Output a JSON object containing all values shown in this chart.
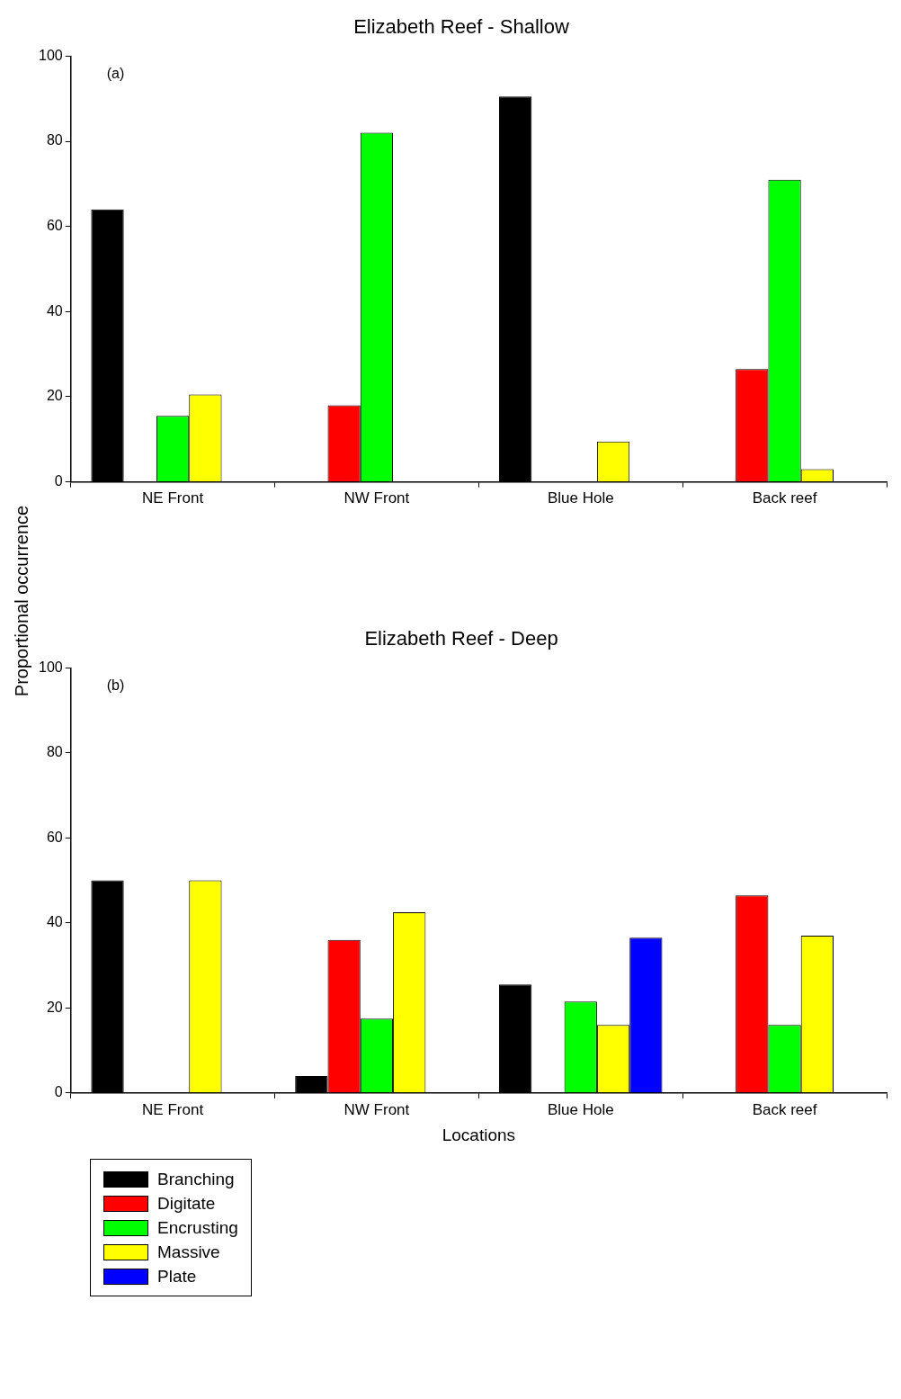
{
  "chart_data": [
    {
      "type": "bar",
      "title": "Elizabeth Reef - Shallow",
      "ylabel": "Proportional occurrence",
      "annotations": [
        "(a)"
      ],
      "categories": [
        "NE Front",
        "NW Front",
        "Blue Hole",
        "Back reef"
      ],
      "series": [
        {
          "color": "#000000",
          "values": [
            64,
            0,
            90.5,
            0
          ]
        },
        {
          "color": "#ff0000",
          "values": [
            0,
            18,
            0,
            26.5
          ]
        },
        {
          "color": "#00ff00",
          "values": [
            15.5,
            82,
            0,
            71
          ]
        },
        {
          "color": "#ffff00",
          "values": [
            20.5,
            0,
            9.5,
            3
          ]
        },
        {
          "color": "#0000ff",
          "values": [
            0,
            0,
            0,
            0
          ]
        }
      ],
      "ylim": [
        0,
        100
      ],
      "yticks": [
        0,
        20,
        40,
        60,
        80,
        100
      ]
    },
    {
      "type": "bar",
      "title": "Elizabeth Reef - Deep",
      "xlabel": "Locations",
      "annotations": [
        "(b)"
      ],
      "categories": [
        "NE Front",
        "NW Front",
        "Blue Hole",
        "Back reef"
      ],
      "series": [
        {
          "name": "Branching",
          "color": "#000000",
          "values": [
            50,
            4,
            25.5,
            0
          ]
        },
        {
          "name": "Digitate",
          "color": "#ff0000",
          "values": [
            0,
            36,
            0,
            46.5
          ]
        },
        {
          "name": "Encrusting",
          "color": "#00ff00",
          "values": [
            0,
            17.5,
            21.5,
            16
          ]
        },
        {
          "name": "Massive",
          "color": "#ffff00",
          "values": [
            50,
            42.5,
            16,
            37
          ]
        },
        {
          "name": "Plate",
          "color": "#0000ff",
          "values": [
            0,
            0,
            36.5,
            0
          ]
        }
      ],
      "ylim": [
        0,
        100
      ],
      "yticks": [
        0,
        20,
        40,
        60,
        80,
        100
      ],
      "legend": "bottom left"
    }
  ]
}
